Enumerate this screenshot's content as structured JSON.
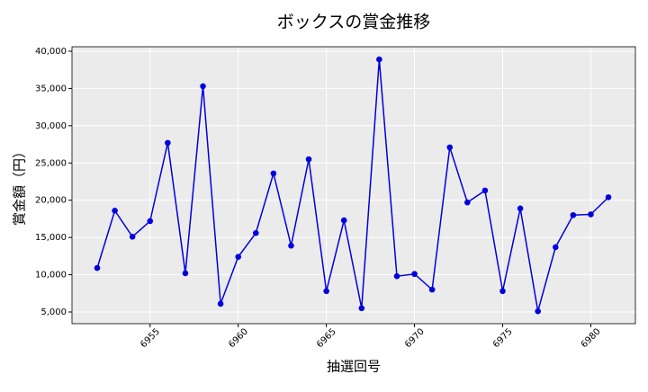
{
  "chart_data": {
    "type": "line",
    "title": "ボックスの賞金推移",
    "x_label": "抽選回号",
    "y_label": "賞金額（円）",
    "x": [
      6952,
      6953,
      6954,
      6955,
      6956,
      6957,
      6958,
      6959,
      6960,
      6961,
      6962,
      6963,
      6964,
      6965,
      6966,
      6967,
      6968,
      6969,
      6970,
      6971,
      6972,
      6973,
      6974,
      6975,
      6976,
      6977,
      6978,
      6979,
      6980,
      6981
    ],
    "series": [
      {
        "color": "#0000dd",
        "values": [
          10900,
          18600,
          15100,
          17200,
          27700,
          10200,
          35300,
          6100,
          12400,
          15600,
          23600,
          13900,
          25500,
          7800,
          17300,
          5500,
          38900,
          9800,
          10100,
          8000,
          27100,
          19700,
          21300,
          7800,
          18900,
          5100,
          13700,
          18000,
          18100,
          20400
        ]
      }
    ],
    "xlim": [
      6950.57,
      6982.53
    ],
    "xticks": [
      6955,
      6960,
      6965,
      6970,
      6975,
      6980
    ],
    "ylim": [
      3430,
      40600
    ],
    "yticks": [
      {
        "value": 5000,
        "label": "5,000"
      },
      {
        "value": 10000,
        "label": "10,000"
      },
      {
        "value": 15000,
        "label": "15,000"
      },
      {
        "value": 20000,
        "label": "20,000"
      },
      {
        "value": 25000,
        "label": "25,000"
      },
      {
        "value": 30000,
        "label": "30,000"
      },
      {
        "value": 35000,
        "label": "35,000"
      },
      {
        "value": 40000,
        "label": "40,000"
      }
    ],
    "grid": true
  }
}
